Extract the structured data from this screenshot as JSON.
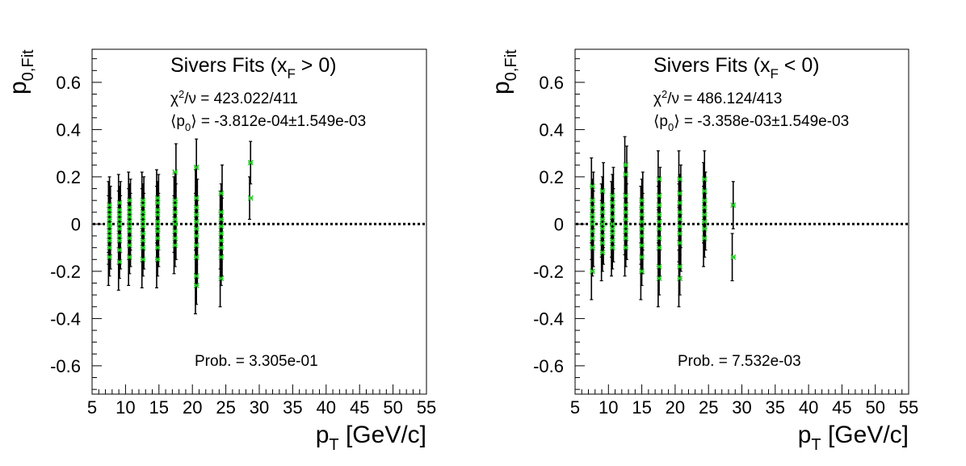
{
  "chart_data": [
    {
      "type": "scatter",
      "title": "Sivers Fits (x_F > 0)",
      "title_parts": {
        "pre": "Sivers Fits (x",
        "sub": "F",
        "post": " > 0)"
      },
      "ylabel": {
        "main": "p",
        "sub": "0,Fit"
      },
      "xlabel": {
        "main": "p",
        "sub": "T",
        "post": " [GeV/c]"
      },
      "xlim": [
        5,
        55
      ],
      "ylim": [
        -0.72,
        0.74
      ],
      "xticks": [
        "5",
        "10",
        "15",
        "20",
        "25",
        "30",
        "35",
        "40",
        "45",
        "50",
        "55"
      ],
      "yticks": [
        "-0.6",
        "-0.4",
        "-0.2",
        "0",
        "0.2",
        "0.4",
        "0.6"
      ],
      "chi2": {
        "label": "χ²/ν = 423.022/411",
        "pre": "χ",
        "sup": "2",
        "post": "/ν = 423.022/411"
      },
      "mean": {
        "label": "⟨p₀⟩ = -3.812e-04±1.549e-03",
        "pre": "⟨p",
        "sub": "0",
        "post": "⟩ = -3.812e-04±1.549e-03"
      },
      "prob": "Prob. = 3.305e-01",
      "reference_line": 0,
      "marker_color": "#22cc22",
      "groups": [
        {
          "x": 7.6,
          "err": 0.12,
          "ys": [
            -0.14,
            -0.1,
            -0.07,
            -0.05,
            -0.03,
            -0.01,
            0.0,
            0.02,
            0.04,
            0.06,
            0.08
          ]
        },
        {
          "x": 9.1,
          "err": 0.12,
          "ys": [
            -0.16,
            -0.11,
            -0.07,
            -0.05,
            -0.02,
            0.0,
            0.02,
            0.04,
            0.06,
            0.09
          ]
        },
        {
          "x": 10.6,
          "err": 0.12,
          "ys": [
            -0.14,
            -0.09,
            -0.06,
            -0.03,
            -0.01,
            0.01,
            0.03,
            0.05,
            0.07,
            0.1
          ]
        },
        {
          "x": 12.6,
          "err": 0.12,
          "ys": [
            -0.15,
            -0.1,
            -0.07,
            -0.04,
            -0.01,
            0.01,
            0.03,
            0.05,
            0.08,
            0.1
          ]
        },
        {
          "x": 14.8,
          "err": 0.12,
          "ys": [
            -0.15,
            -0.1,
            -0.06,
            -0.03,
            -0.01,
            0.01,
            0.04,
            0.06,
            0.09,
            0.11
          ]
        },
        {
          "x": 17.4,
          "err": 0.12,
          "ys": [
            -0.09,
            -0.06,
            -0.03,
            0.0,
            0.02,
            0.05,
            0.08,
            0.1,
            0.22
          ]
        },
        {
          "x": 20.6,
          "err": 0.12,
          "ys": [
            -0.26,
            -0.22,
            -0.14,
            -0.09,
            -0.05,
            -0.02,
            0.01,
            0.04,
            0.07,
            0.11,
            0.24
          ]
        },
        {
          "x": 24.3,
          "err": 0.12,
          "ys": [
            -0.23,
            -0.14,
            -0.1,
            -0.07,
            -0.04,
            -0.01,
            0.02,
            0.05,
            0.13
          ]
        },
        {
          "x": 28.7,
          "err": 0.09,
          "ys": [
            0.11,
            0.26
          ]
        }
      ]
    },
    {
      "type": "scatter",
      "title": "Sivers Fits (x_F < 0)",
      "title_parts": {
        "pre": "Sivers Fits (x",
        "sub": "F",
        "post": " < 0)"
      },
      "ylabel": {
        "main": "p",
        "sub": "0,Fit"
      },
      "xlabel": {
        "main": "p",
        "sub": "T",
        "post": " [GeV/c]"
      },
      "xlim": [
        5,
        55
      ],
      "ylim": [
        -0.72,
        0.74
      ],
      "xticks": [
        "5",
        "10",
        "15",
        "20",
        "25",
        "30",
        "35",
        "40",
        "45",
        "50",
        "55"
      ],
      "yticks": [
        "-0.6",
        "-0.4",
        "-0.2",
        "0",
        "0.2",
        "0.4",
        "0.6"
      ],
      "chi2": {
        "label": "χ²/ν = 486.124/413",
        "pre": "χ",
        "sup": "2",
        "post": "/ν = 486.124/413"
      },
      "mean": {
        "label": "⟨p₀⟩ = -3.358e-03±1.549e-03",
        "pre": "⟨p",
        "sub": "0",
        "post": "⟩ = -3.358e-03±1.549e-03"
      },
      "prob": "Prob. = 7.532e-03",
      "reference_line": 0,
      "marker_color": "#22cc22",
      "groups": [
        {
          "x": 7.6,
          "err": 0.12,
          "ys": [
            -0.2,
            -0.1,
            -0.06,
            -0.03,
            0.0,
            0.02,
            0.04,
            0.07,
            0.1,
            0.16
          ]
        },
        {
          "x": 9.1,
          "err": 0.12,
          "ys": [
            -0.12,
            -0.08,
            -0.05,
            -0.02,
            0.0,
            0.02,
            0.05,
            0.08,
            0.14
          ]
        },
        {
          "x": 10.6,
          "err": 0.12,
          "ys": [
            -0.1,
            -0.07,
            -0.04,
            -0.02,
            0.0,
            0.03,
            0.06,
            0.09,
            0.12
          ]
        },
        {
          "x": 12.6,
          "err": 0.12,
          "ys": [
            -0.1,
            -0.06,
            -0.03,
            -0.01,
            0.02,
            0.05,
            0.08,
            0.12,
            0.21,
            0.25
          ]
        },
        {
          "x": 15.0,
          "err": 0.12,
          "ys": [
            -0.2,
            -0.14,
            -0.09,
            -0.05,
            -0.02,
            0.01,
            0.04,
            0.07,
            0.1
          ]
        },
        {
          "x": 17.6,
          "err": 0.12,
          "ys": [
            -0.23,
            -0.18,
            -0.1,
            -0.06,
            -0.02,
            0.01,
            0.04,
            0.08,
            0.12,
            0.19
          ]
        },
        {
          "x": 20.7,
          "err": 0.12,
          "ys": [
            -0.23,
            -0.18,
            -0.08,
            -0.04,
            -0.01,
            0.02,
            0.05,
            0.09,
            0.13,
            0.19
          ]
        },
        {
          "x": 24.4,
          "err": 0.12,
          "ys": [
            -0.06,
            -0.02,
            0.01,
            0.04,
            0.07,
            0.1,
            0.14,
            0.19
          ]
        },
        {
          "x": 28.7,
          "err": 0.1,
          "ys": [
            -0.14,
            0.08
          ]
        }
      ]
    }
  ]
}
